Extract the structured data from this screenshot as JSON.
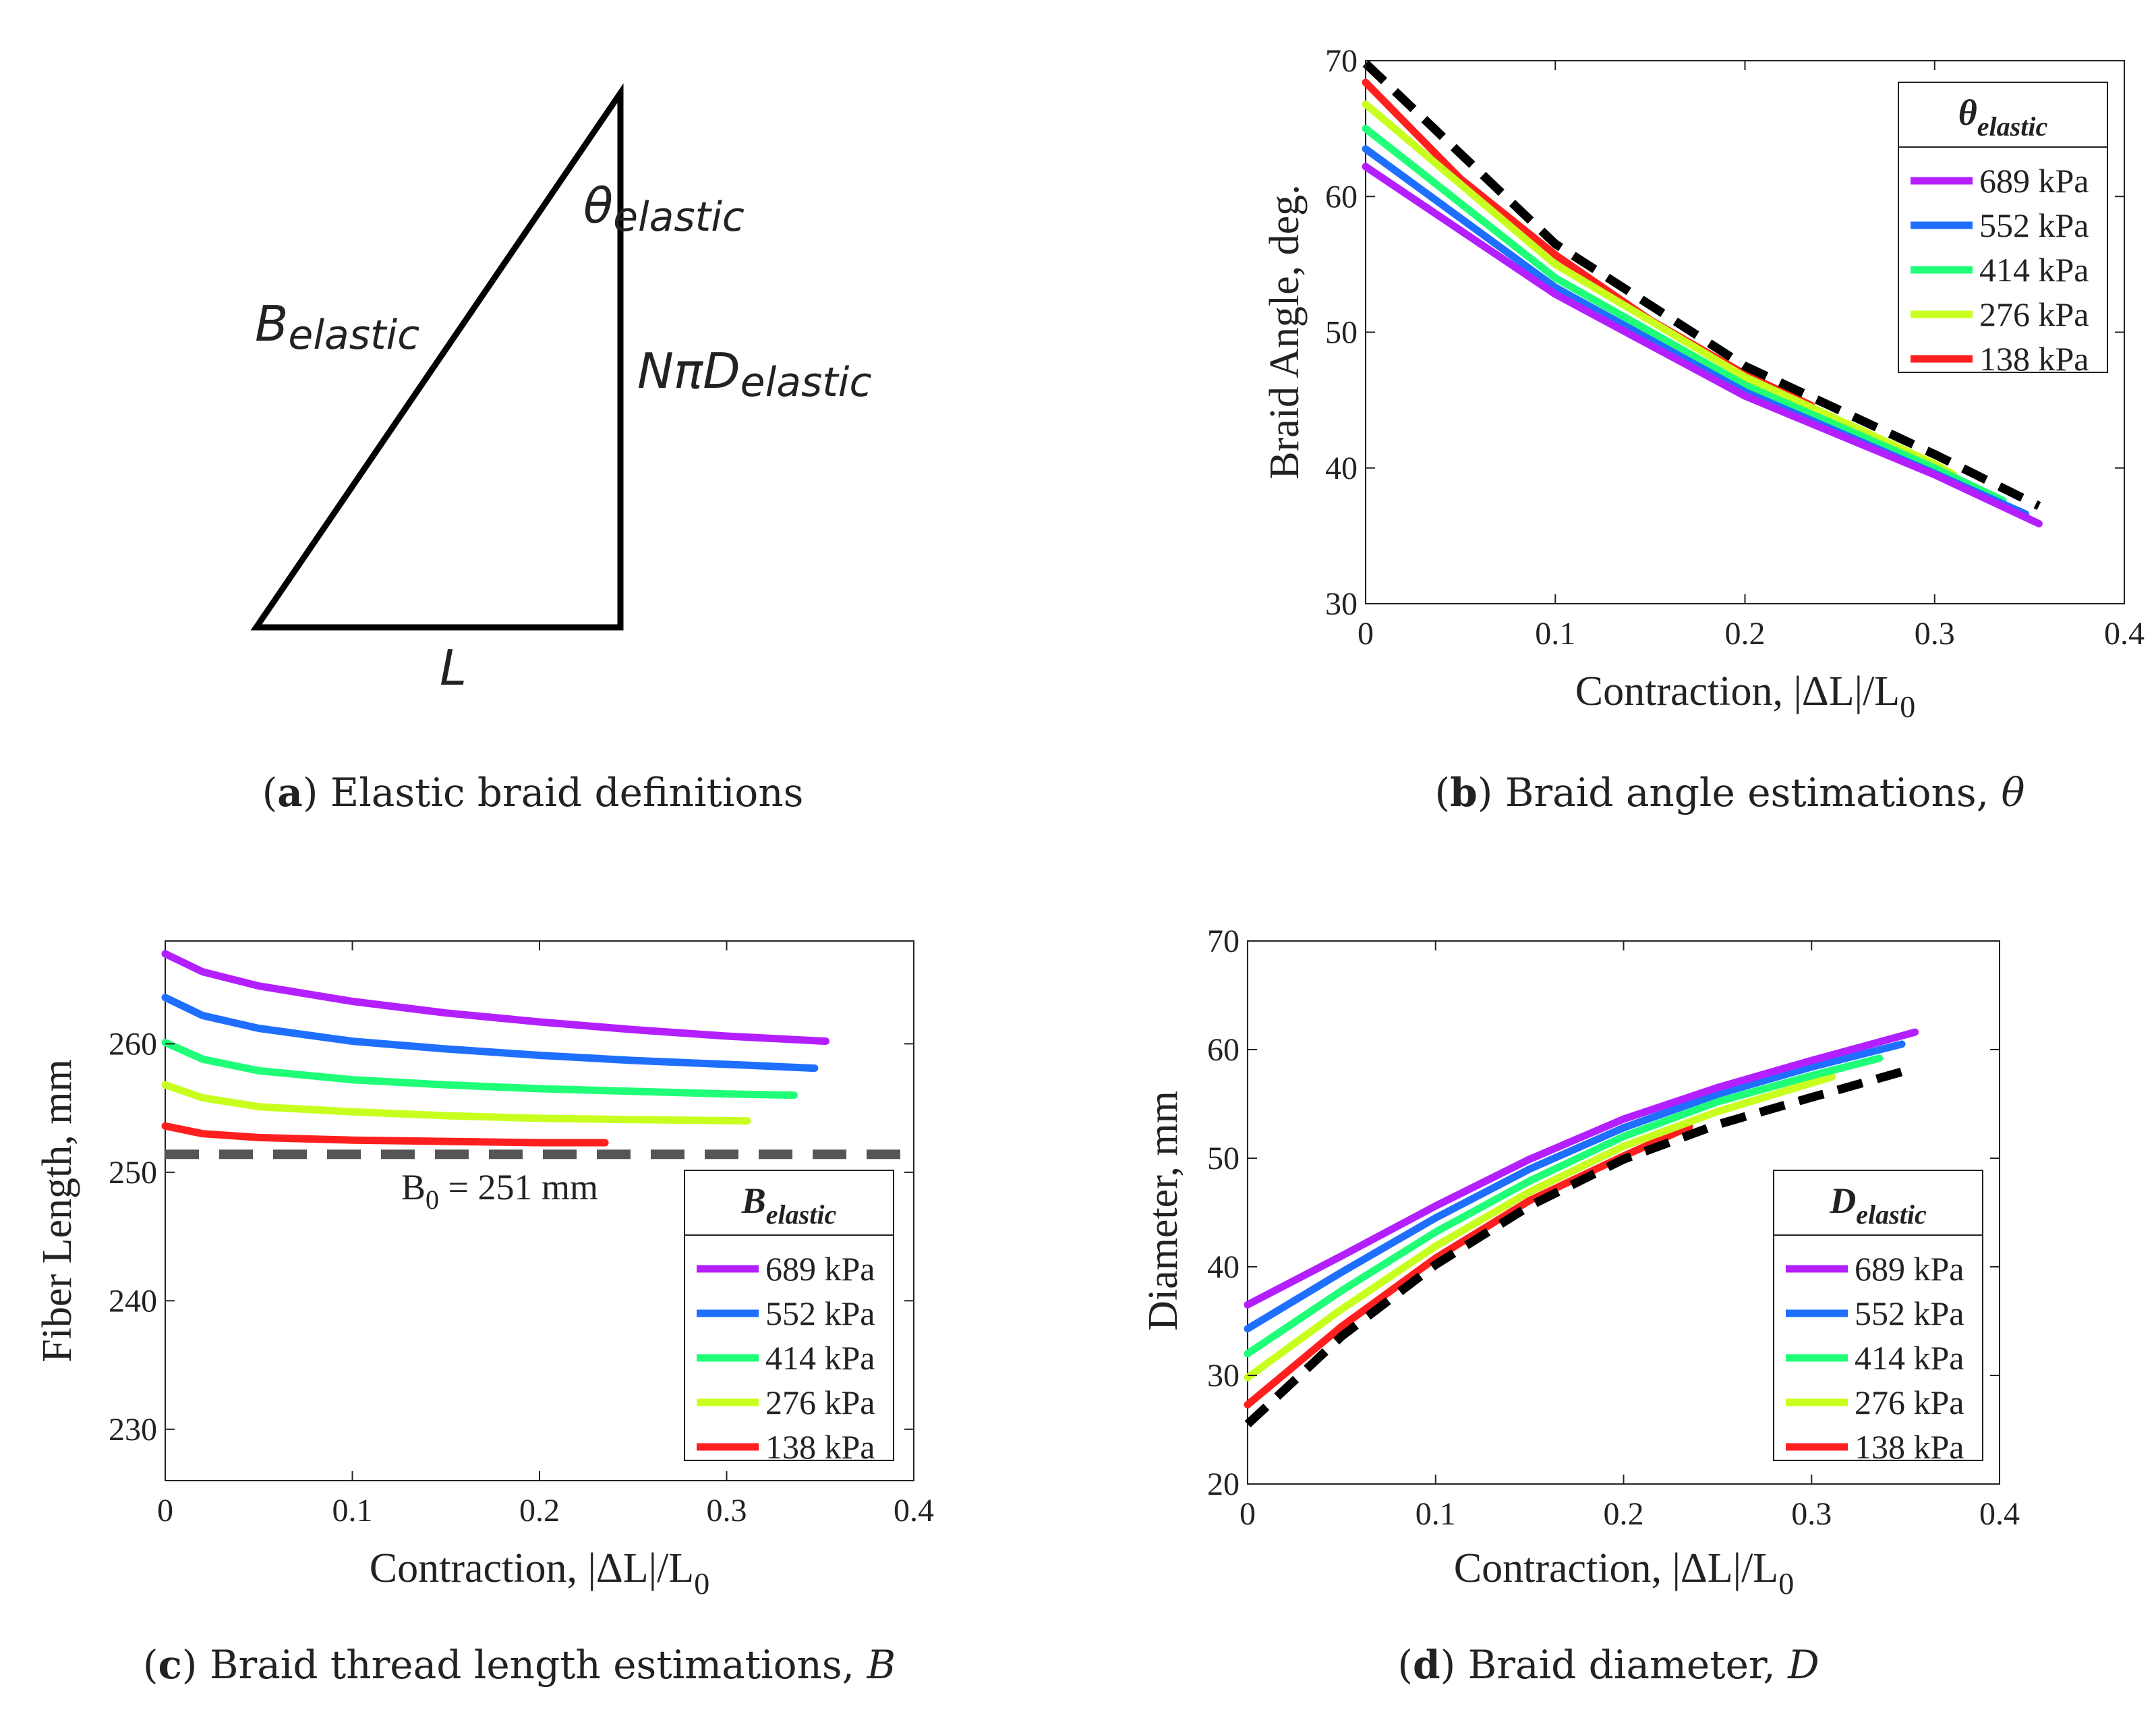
{
  "panels": {
    "a": {
      "caption_letter": "a",
      "caption_text": "Elastic braid definitions",
      "label_theta": "θ",
      "label_theta_sub": "elastic",
      "label_B": "B",
      "label_B_sub": "elastic",
      "label_NpiD": "NπD",
      "label_NpiD_sub": "elastic",
      "label_L": "L"
    },
    "b": {
      "caption_letter": "b",
      "caption_text": "Braid angle estimations, ",
      "caption_var": "θ"
    },
    "c": {
      "caption_letter": "c",
      "caption_text": "Braid thread length estimations, ",
      "caption_var": "B"
    },
    "d": {
      "caption_letter": "d",
      "caption_text": "Braid diameter, ",
      "caption_var": "D"
    }
  },
  "colors": {
    "p689": "#b41fff",
    "p552": "#1f6fff",
    "p414": "#1fff78",
    "p276": "#c8ff1f",
    "p138": "#ff1f1f",
    "reference": "#000000",
    "baseline": "#555555"
  },
  "chart_data": [
    {
      "id": "b",
      "type": "line",
      "title": "",
      "xlabel": "Contraction, |ΔL|/L",
      "xlabel_sub": "0",
      "ylabel": "Braid Angle, deg.",
      "xlim": [
        0,
        0.4
      ],
      "ylim": [
        30,
        70
      ],
      "xticks": [
        "0",
        "0.1",
        "0.2",
        "0.3",
        "0.4"
      ],
      "yticks": [
        "30",
        "40",
        "50",
        "60",
        "70"
      ],
      "legend_title": "θ",
      "legend_title_sub": "elastic",
      "legend_position": "top-right",
      "series": [
        {
          "name": "689 kPa",
          "color_key": "p689",
          "x": [
            0,
            0.1,
            0.2,
            0.3,
            0.355
          ],
          "y": [
            62.2,
            52.8,
            45.3,
            39.5,
            35.9
          ]
        },
        {
          "name": "552 kPa",
          "color_key": "p552",
          "x": [
            0,
            0.1,
            0.2,
            0.3,
            0.348
          ],
          "y": [
            63.5,
            53.3,
            45.6,
            39.6,
            36.6
          ]
        },
        {
          "name": "414 kPa",
          "color_key": "p414",
          "x": [
            0,
            0.1,
            0.2,
            0.3,
            0.336
          ],
          "y": [
            65.0,
            54.0,
            46.1,
            40.0,
            37.6
          ]
        },
        {
          "name": "276 kPa",
          "color_key": "p276",
          "x": [
            0,
            0.1,
            0.2,
            0.3,
            0.31
          ],
          "y": [
            66.8,
            55.0,
            46.7,
            40.3,
            39.5
          ]
        },
        {
          "name": "138 kPa",
          "color_key": "p138",
          "x": [
            0,
            0.05,
            0.1,
            0.15,
            0.2,
            0.235
          ],
          "y": [
            68.4,
            61.3,
            55.7,
            50.9,
            46.9,
            44.6
          ]
        },
        {
          "name": "reference",
          "color_key": "reference",
          "dashed": true,
          "show_in_legend": false,
          "x": [
            0,
            0.1,
            0.2,
            0.3,
            0.355
          ],
          "y": [
            69.8,
            56.5,
            47.5,
            41.0,
            37.2
          ]
        }
      ]
    },
    {
      "id": "c",
      "type": "line",
      "title": "",
      "xlabel": "Contraction, |ΔL|/L",
      "xlabel_sub": "0",
      "ylabel": "Fiber Length, mm",
      "xlim": [
        0,
        0.4
      ],
      "ylim": [
        226,
        268
      ],
      "xticks": [
        "0",
        "0.1",
        "0.2",
        "0.3",
        "0.4"
      ],
      "yticks": [
        "230",
        "240",
        "250",
        "260"
      ],
      "ytick_values": [
        230,
        240,
        250,
        260
      ],
      "legend_title": "B",
      "legend_title_sub": "elastic",
      "legend_position": "bottom-right",
      "annotation": "B",
      "annotation_sub": "0",
      "annotation_tail": " = 251 mm",
      "baseline_value": 251.4,
      "series": [
        {
          "name": "689 kPa",
          "color_key": "p689",
          "x": [
            0,
            0.02,
            0.05,
            0.1,
            0.15,
            0.2,
            0.25,
            0.3,
            0.353
          ],
          "y": [
            267.0,
            265.6,
            264.5,
            263.3,
            262.4,
            261.7,
            261.1,
            260.6,
            260.2
          ]
        },
        {
          "name": "552 kPa",
          "color_key": "p552",
          "x": [
            0,
            0.02,
            0.05,
            0.1,
            0.15,
            0.2,
            0.25,
            0.3,
            0.347
          ],
          "y": [
            263.6,
            262.2,
            261.2,
            260.2,
            259.6,
            259.1,
            258.7,
            258.4,
            258.1
          ]
        },
        {
          "name": "414 kPa",
          "color_key": "p414",
          "x": [
            0,
            0.02,
            0.05,
            0.1,
            0.15,
            0.2,
            0.25,
            0.3,
            0.336
          ],
          "y": [
            260.1,
            258.8,
            257.9,
            257.2,
            256.8,
            256.5,
            256.3,
            256.1,
            256.0
          ]
        },
        {
          "name": "276 kPa",
          "color_key": "p276",
          "x": [
            0,
            0.02,
            0.05,
            0.1,
            0.15,
            0.2,
            0.25,
            0.311
          ],
          "y": [
            256.8,
            255.8,
            255.1,
            254.7,
            254.4,
            254.2,
            254.1,
            254.0
          ]
        },
        {
          "name": "138 kPa",
          "color_key": "p138",
          "x": [
            0,
            0.02,
            0.05,
            0.1,
            0.15,
            0.2,
            0.235
          ],
          "y": [
            253.6,
            253.0,
            252.7,
            252.5,
            252.4,
            252.3,
            252.3
          ]
        }
      ]
    },
    {
      "id": "d",
      "type": "line",
      "title": "",
      "xlabel": "Contraction, |ΔL|/L",
      "xlabel_sub": "0",
      "ylabel": "Diameter, mm",
      "xlim": [
        0,
        0.4
      ],
      "ylim": [
        20,
        70
      ],
      "xticks": [
        "0",
        "0.1",
        "0.2",
        "0.3",
        "0.4"
      ],
      "yticks": [
        "20",
        "30",
        "40",
        "50",
        "60",
        "70"
      ],
      "legend_title": "D",
      "legend_title_sub": "elastic",
      "legend_position": "bottom-right",
      "series": [
        {
          "name": "689 kPa",
          "color_key": "p689",
          "x": [
            0,
            0.05,
            0.1,
            0.15,
            0.2,
            0.25,
            0.3,
            0.355
          ],
          "y": [
            36.5,
            41.0,
            45.6,
            49.9,
            53.6,
            56.5,
            59.0,
            61.6
          ]
        },
        {
          "name": "552 kPa",
          "color_key": "p552",
          "x": [
            0,
            0.05,
            0.1,
            0.15,
            0.2,
            0.25,
            0.3,
            0.348
          ],
          "y": [
            34.3,
            39.5,
            44.5,
            49.0,
            52.8,
            55.9,
            58.4,
            60.5
          ]
        },
        {
          "name": "414 kPa",
          "color_key": "p414",
          "x": [
            0,
            0.05,
            0.1,
            0.15,
            0.2,
            0.25,
            0.3,
            0.336
          ],
          "y": [
            32.0,
            37.8,
            43.2,
            47.9,
            52.0,
            55.2,
            57.6,
            59.2
          ]
        },
        {
          "name": "276 kPa",
          "color_key": "p276",
          "x": [
            0,
            0.05,
            0.1,
            0.15,
            0.2,
            0.25,
            0.311
          ],
          "y": [
            29.8,
            36.1,
            41.9,
            46.9,
            51.1,
            54.3,
            57.5
          ]
        },
        {
          "name": "138 kPa",
          "color_key": "p138",
          "x": [
            0,
            0.05,
            0.1,
            0.15,
            0.2,
            0.235
          ],
          "y": [
            27.3,
            34.5,
            40.8,
            46.1,
            50.2,
            52.9
          ]
        },
        {
          "name": "reference",
          "color_key": "reference",
          "dashed": true,
          "show_in_legend": false,
          "x": [
            0,
            0.05,
            0.1,
            0.15,
            0.2,
            0.25,
            0.3,
            0.355
          ],
          "y": [
            25.5,
            33.6,
            40.2,
            45.6,
            49.9,
            53.1,
            55.6,
            58.3
          ]
        }
      ]
    }
  ]
}
